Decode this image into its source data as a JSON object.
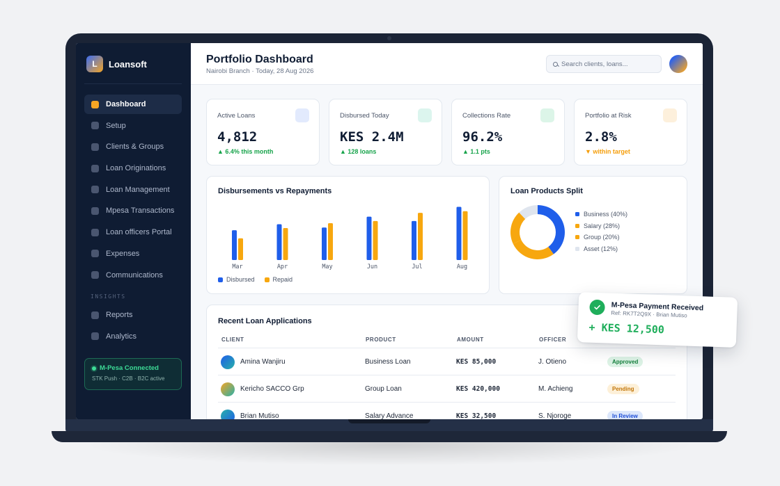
{
  "app": {
    "logo_letter": "L",
    "name": "Loansoft"
  },
  "sidebar": {
    "items": [
      {
        "label": "Dashboard"
      },
      {
        "label": "Setup"
      },
      {
        "label": "Clients & Groups"
      },
      {
        "label": "Loan Originations"
      },
      {
        "label": "Loan Management"
      },
      {
        "label": "Mpesa Transactions"
      },
      {
        "label": "Loan officers Portal"
      },
      {
        "label": "Expenses"
      },
      {
        "label": "Communications"
      }
    ],
    "section_label": "INSIGHTS",
    "insights": [
      {
        "label": "Reports"
      },
      {
        "label": "Analytics"
      }
    ],
    "mpesa": {
      "title": "M-Pesa Connected",
      "subtitle": "STK Push · C2B · B2C active"
    }
  },
  "header": {
    "title": "Portfolio Dashboard",
    "subtitle": "Nairobi Branch · Today, 28 Aug 2026",
    "search_placeholder": "Search clients, loans..."
  },
  "kpis": [
    {
      "label": "Active Loans",
      "value": "4,812",
      "delta": "▲ 6.4% this month",
      "icon_color": "#e2eafd"
    },
    {
      "label": "Disbursed Today",
      "value": "KES 2.4M",
      "delta": "▲ 128 loans",
      "icon_color": "#dcf5ee"
    },
    {
      "label": "Collections Rate",
      "value": "96.2%",
      "delta": "▲ 1.1 pts",
      "icon_color": "#dcf5e8"
    },
    {
      "label": "Portfolio at Risk",
      "value": "2.8%",
      "delta": "▼ within target",
      "icon_color": "#fdf0dc"
    }
  ],
  "bar_card": {
    "title": "Disbursements vs Repayments"
  },
  "donut_card": {
    "title": "Loan Products Split"
  },
  "chart_data": [
    {
      "type": "bar",
      "title": "Disbursements vs Repayments",
      "categories": [
        "Mar",
        "Apr",
        "May",
        "Jun",
        "Jul",
        "Aug"
      ],
      "series": [
        {
          "name": "Disbursed",
          "color": "#1f5eea",
          "values": [
            55,
            66,
            60,
            80,
            72,
            98
          ]
        },
        {
          "name": "Repaid",
          "color": "#f7a70f",
          "values": [
            40,
            59,
            68,
            72,
            87,
            90
          ]
        }
      ],
      "ylim": [
        0,
        100
      ]
    },
    {
      "type": "pie",
      "title": "Loan Products Split",
      "categories": [
        "Business (40%)",
        "Salary (28%)",
        "Group (20%)",
        "Asset (12%)"
      ],
      "values": [
        40,
        28,
        20,
        12
      ],
      "colors": [
        "#1f5eea",
        "#f7a70f",
        "#f7a70f",
        "#dfe5ee"
      ]
    }
  ],
  "table": {
    "title": "Recent Loan Applications",
    "headers": [
      "CLIENT",
      "PRODUCT",
      "AMOUNT",
      "OFFICER"
    ],
    "rows": [
      {
        "client": "Amina Wanjiru",
        "product": "Business Loan",
        "amount": "KES 85,000",
        "officer": "J. Otieno",
        "status": "Approved"
      },
      {
        "client": "Kericho SACCO Grp",
        "product": "Group Loan",
        "amount": "KES 420,000",
        "officer": "M. Achieng",
        "status": "Pending"
      },
      {
        "client": "Brian Mutiso",
        "product": "Salary Advance",
        "amount": "KES 32,500",
        "officer": "S. Njoroge",
        "status": "In Review"
      }
    ]
  },
  "toast": {
    "title": "M-Pesa Payment Received",
    "ref": "Ref: RK7T2Q9X · Brian Mutiso",
    "amount": "+ KES 12,500"
  }
}
